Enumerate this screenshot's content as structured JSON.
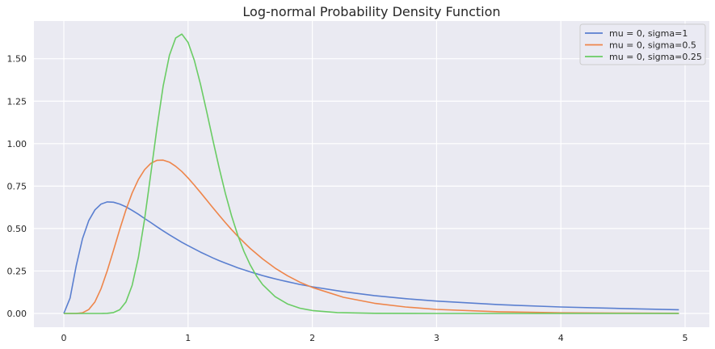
{
  "chart_data": {
    "type": "line",
    "title": "Log-normal Probability Density Function",
    "xlabel": "",
    "ylabel": "",
    "xlim": [
      -0.25,
      5.2
    ],
    "ylim": [
      -0.08,
      1.72
    ],
    "xticks": [
      0,
      1,
      2,
      3,
      4,
      5
    ],
    "xtick_labels": [
      "0",
      "1",
      "2",
      "3",
      "4",
      "5"
    ],
    "yticks": [
      0.0,
      0.25,
      0.5,
      0.75,
      1.0,
      1.25,
      1.5
    ],
    "ytick_labels": [
      "0.00",
      "0.25",
      "0.50",
      "0.75",
      "1.00",
      "1.25",
      "1.50"
    ],
    "grid": true,
    "legend_position": "upper right",
    "background": "#eaeaf2",
    "series": [
      {
        "name": "mu = 0, sigma=1",
        "color": "#4c72b0",
        "stroke": "#5a7fd0",
        "points": [
          [
            0,
            0
          ],
          [
            0.05,
            0.09
          ],
          [
            0.1,
            0.282
          ],
          [
            0.15,
            0.44
          ],
          [
            0.2,
            0.546
          ],
          [
            0.25,
            0.61
          ],
          [
            0.3,
            0.644
          ],
          [
            0.35,
            0.657
          ],
          [
            0.4,
            0.655
          ],
          [
            0.45,
            0.644
          ],
          [
            0.5,
            0.628
          ],
          [
            0.55,
            0.607
          ],
          [
            0.6,
            0.584
          ],
          [
            0.65,
            0.559
          ],
          [
            0.7,
            0.535
          ],
          [
            0.75,
            0.51
          ],
          [
            0.8,
            0.486
          ],
          [
            0.85,
            0.463
          ],
          [
            0.9,
            0.441
          ],
          [
            0.95,
            0.419
          ],
          [
            1.0,
            0.399
          ],
          [
            1.05,
            0.38
          ],
          [
            1.1,
            0.361
          ],
          [
            1.15,
            0.344
          ],
          [
            1.2,
            0.327
          ],
          [
            1.25,
            0.311
          ],
          [
            1.3,
            0.297
          ],
          [
            1.35,
            0.283
          ],
          [
            1.4,
            0.269
          ],
          [
            1.45,
            0.257
          ],
          [
            1.5,
            0.245
          ],
          [
            1.55,
            0.234
          ],
          [
            1.6,
            0.223
          ],
          [
            1.65,
            0.213
          ],
          [
            1.7,
            0.204
          ],
          [
            1.75,
            0.195
          ],
          [
            1.8,
            0.187
          ],
          [
            1.85,
            0.179
          ],
          [
            1.9,
            0.171
          ],
          [
            1.95,
            0.164
          ],
          [
            2.0,
            0.157
          ],
          [
            2.25,
            0.128
          ],
          [
            2.5,
            0.105
          ],
          [
            2.75,
            0.087
          ],
          [
            3.0,
            0.073
          ],
          [
            3.5,
            0.052
          ],
          [
            4.0,
            0.038
          ],
          [
            4.5,
            0.029
          ],
          [
            4.95,
            0.022
          ]
        ]
      },
      {
        "name": "mu = 0, sigma=0.5",
        "color": "#dd8452",
        "stroke": "#ee854a",
        "points": [
          [
            0,
            0
          ],
          [
            0.05,
            0.0
          ],
          [
            0.1,
            0.0
          ],
          [
            0.15,
            0.004
          ],
          [
            0.2,
            0.023
          ],
          [
            0.25,
            0.068
          ],
          [
            0.3,
            0.146
          ],
          [
            0.35,
            0.252
          ],
          [
            0.4,
            0.372
          ],
          [
            0.45,
            0.495
          ],
          [
            0.5,
            0.61
          ],
          [
            0.55,
            0.71
          ],
          [
            0.6,
            0.789
          ],
          [
            0.65,
            0.847
          ],
          [
            0.7,
            0.884
          ],
          [
            0.75,
            0.902
          ],
          [
            0.8,
            0.903
          ],
          [
            0.85,
            0.891
          ],
          [
            0.9,
            0.867
          ],
          [
            0.95,
            0.836
          ],
          [
            1.0,
            0.798
          ],
          [
            1.05,
            0.756
          ],
          [
            1.1,
            0.712
          ],
          [
            1.15,
            0.667
          ],
          [
            1.2,
            0.622
          ],
          [
            1.25,
            0.578
          ],
          [
            1.3,
            0.535
          ],
          [
            1.35,
            0.494
          ],
          [
            1.4,
            0.455
          ],
          [
            1.45,
            0.418
          ],
          [
            1.5,
            0.383
          ],
          [
            1.6,
            0.321
          ],
          [
            1.7,
            0.267
          ],
          [
            1.8,
            0.222
          ],
          [
            1.9,
            0.184
          ],
          [
            2.0,
            0.153
          ],
          [
            2.25,
            0.095
          ],
          [
            2.5,
            0.06
          ],
          [
            2.75,
            0.038
          ],
          [
            3.0,
            0.024
          ],
          [
            3.5,
            0.01
          ],
          [
            4.0,
            0.004
          ],
          [
            4.5,
            0.002
          ],
          [
            4.95,
            0.001
          ]
        ]
      },
      {
        "name": "mu = 0, sigma=0.25",
        "color": "#55a868",
        "stroke": "#6acc64",
        "points": [
          [
            0,
            0
          ],
          [
            0.1,
            0.0
          ],
          [
            0.2,
            0.0
          ],
          [
            0.3,
            0.0
          ],
          [
            0.35,
            0.001
          ],
          [
            0.4,
            0.005
          ],
          [
            0.45,
            0.022
          ],
          [
            0.5,
            0.068
          ],
          [
            0.55,
            0.166
          ],
          [
            0.6,
            0.33
          ],
          [
            0.65,
            0.556
          ],
          [
            0.7,
            0.824
          ],
          [
            0.75,
            1.097
          ],
          [
            0.8,
            1.34
          ],
          [
            0.85,
            1.52
          ],
          [
            0.9,
            1.622
          ],
          [
            0.95,
            1.645
          ],
          [
            1.0,
            1.596
          ],
          [
            1.05,
            1.491
          ],
          [
            1.1,
            1.349
          ],
          [
            1.15,
            1.187
          ],
          [
            1.2,
            1.019
          ],
          [
            1.25,
            0.857
          ],
          [
            1.3,
            0.708
          ],
          [
            1.35,
            0.575
          ],
          [
            1.4,
            0.461
          ],
          [
            1.45,
            0.365
          ],
          [
            1.5,
            0.286
          ],
          [
            1.55,
            0.221
          ],
          [
            1.6,
            0.17
          ],
          [
            1.7,
            0.099
          ],
          [
            1.8,
            0.056
          ],
          [
            1.9,
            0.031
          ],
          [
            2.0,
            0.017
          ],
          [
            2.2,
            0.005
          ],
          [
            2.5,
            0.001
          ],
          [
            3.0,
            0.0
          ],
          [
            4.0,
            0.0
          ],
          [
            4.95,
            0.0
          ]
        ]
      }
    ]
  }
}
